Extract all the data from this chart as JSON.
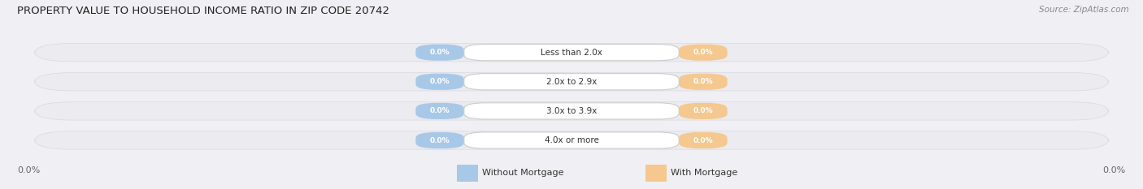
{
  "title": "PROPERTY VALUE TO HOUSEHOLD INCOME RATIO IN ZIP CODE 20742",
  "source": "Source: ZipAtlas.com",
  "categories": [
    "Less than 2.0x",
    "2.0x to 2.9x",
    "3.0x to 3.9x",
    "4.0x or more"
  ],
  "without_mortgage": [
    0.0,
    0.0,
    0.0,
    0.0
  ],
  "with_mortgage": [
    0.0,
    0.0,
    0.0,
    0.0
  ],
  "color_without": "#a8c8e8",
  "color_with": "#f5c890",
  "row_bg_color": "#e8e8ec",
  "row_bg_color2": "#dcdce4",
  "figsize": [
    14.06,
    2.33
  ],
  "dpi": 100,
  "legend_without": "Without Mortgage",
  "legend_with": "With Mortgage",
  "left_label": "0.0%",
  "right_label": "0.0%",
  "bg_color": "#f0f0f4"
}
